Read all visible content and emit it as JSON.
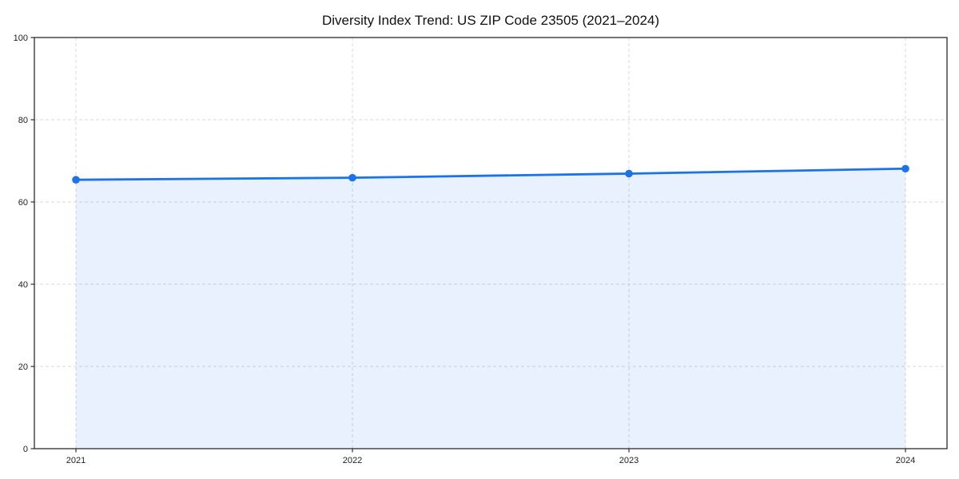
{
  "chart_data": {
    "type": "line",
    "title": "Diversity Index Trend: US ZIP Code 23505 (2021–2024)",
    "categories": [
      "2021",
      "2022",
      "2023",
      "2024"
    ],
    "series": [
      {
        "name": "Diversity Index",
        "values": [
          65.4,
          65.9,
          66.9,
          68.1
        ]
      }
    ],
    "xlabel": "",
    "ylabel": "",
    "ylim": [
      0,
      100
    ],
    "yticks": [
      0,
      20,
      40,
      60,
      80,
      100
    ],
    "grid": true,
    "grid_style": "dashed",
    "legend_position": "none",
    "area_fill": true,
    "marker": "circle",
    "colors": {
      "line": "#1a73e8",
      "marker": "#1a73e8",
      "area": "#1a73e8",
      "area_opacity": 0.1,
      "grid": "#d9d9d9",
      "spine": "#2b2b2b",
      "title_text": "#111111",
      "tick_text": "#222222",
      "background": "#ffffff"
    }
  }
}
